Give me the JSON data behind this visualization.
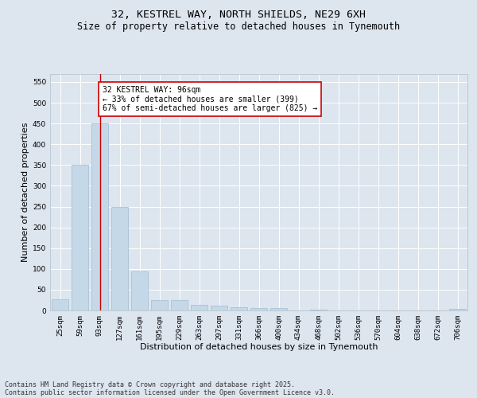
{
  "title_line1": "32, KESTREL WAY, NORTH SHIELDS, NE29 6XH",
  "title_line2": "Size of property relative to detached houses in Tynemouth",
  "xlabel": "Distribution of detached houses by size in Tynemouth",
  "ylabel": "Number of detached properties",
  "categories": [
    "25sqm",
    "59sqm",
    "93sqm",
    "127sqm",
    "161sqm",
    "195sqm",
    "229sqm",
    "263sqm",
    "297sqm",
    "331sqm",
    "366sqm",
    "400sqm",
    "434sqm",
    "468sqm",
    "502sqm",
    "536sqm",
    "570sqm",
    "604sqm",
    "638sqm",
    "672sqm",
    "706sqm"
  ],
  "values": [
    27,
    350,
    450,
    250,
    93,
    24,
    24,
    13,
    11,
    8,
    6,
    5,
    0,
    1,
    0,
    0,
    0,
    0,
    0,
    0,
    4
  ],
  "bar_color": "#c5d8e8",
  "bar_edge_color": "#a0bcd0",
  "vline_x": 2,
  "vline_color": "#cc0000",
  "annotation_text": "32 KESTREL WAY: 96sqm\n← 33% of detached houses are smaller (399)\n67% of semi-detached houses are larger (825) →",
  "annotation_box_color": "#ffffff",
  "annotation_box_edge_color": "#cc0000",
  "ylim": [
    0,
    570
  ],
  "yticks": [
    0,
    50,
    100,
    150,
    200,
    250,
    300,
    350,
    400,
    450,
    500,
    550
  ],
  "background_color": "#dde5ef",
  "plot_background": "#dde5ef",
  "grid_color": "#ffffff",
  "footer_line1": "Contains HM Land Registry data © Crown copyright and database right 2025.",
  "footer_line2": "Contains public sector information licensed under the Open Government Licence v3.0.",
  "title_fontsize": 9.5,
  "subtitle_fontsize": 8.5,
  "tick_fontsize": 6.5,
  "label_fontsize": 8,
  "annotation_fontsize": 7,
  "footer_fontsize": 6
}
